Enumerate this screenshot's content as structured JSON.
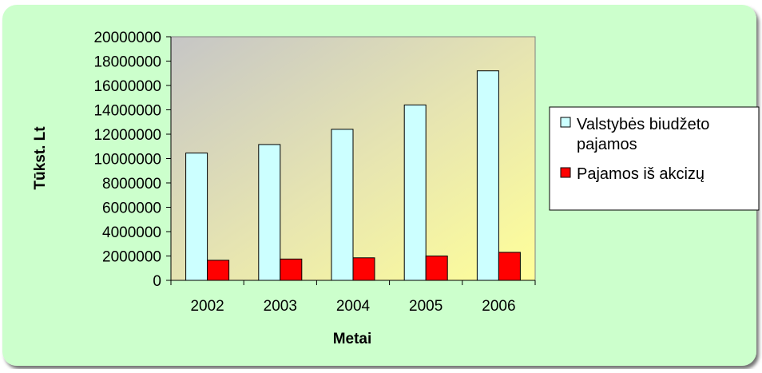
{
  "chart_data": {
    "type": "bar",
    "xlabel": "Metai",
    "ylabel": "Tūkst. Lt",
    "categories": [
      "2002",
      "2003",
      "2004",
      "2005",
      "2006"
    ],
    "series": [
      {
        "name": "Valstybės biudžeto pajamos",
        "color": "#ccffff",
        "values": [
          10450000,
          11150000,
          12400000,
          14400000,
          17200000
        ]
      },
      {
        "name": "Pajamos iš akcizų",
        "color": "#ff0000",
        "values": [
          1650000,
          1750000,
          1850000,
          2000000,
          2300000
        ]
      }
    ],
    "ylim": [
      0,
      20000000
    ],
    "yticks": [
      "0",
      "2000000",
      "4000000",
      "6000000",
      "8000000",
      "10000000",
      "12000000",
      "14000000",
      "16000000",
      "18000000",
      "20000000"
    ],
    "grid": false,
    "legend_position": "right"
  }
}
